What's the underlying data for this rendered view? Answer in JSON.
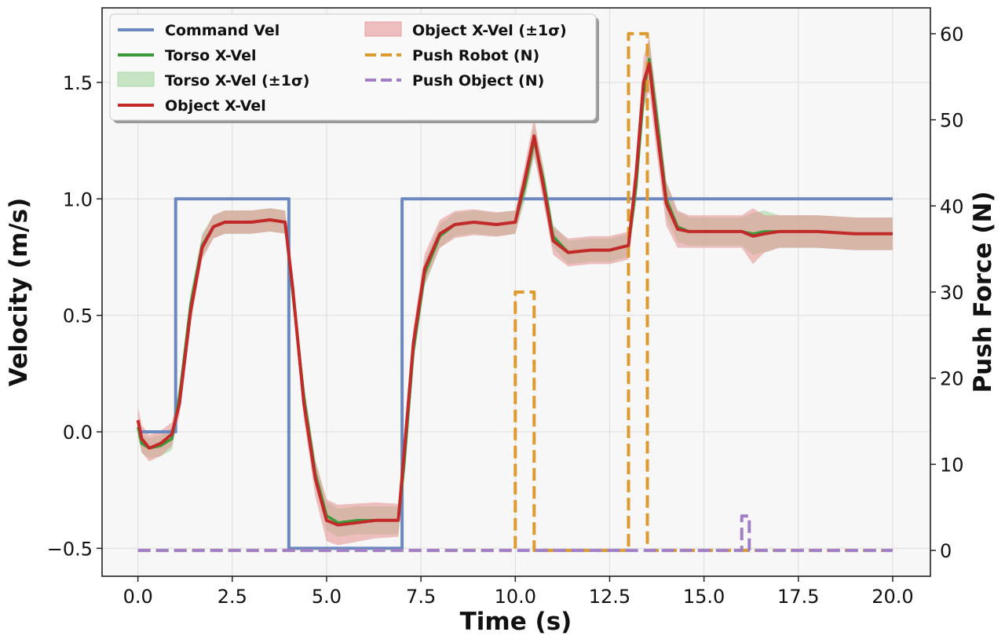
{
  "chart_data": {
    "type": "line",
    "xlabel": "Time (s)",
    "ylabel": "Velocity (m/s)",
    "y2label": "Push Force (N)",
    "xlim": [
      -0.95,
      21.0
    ],
    "ylim": [
      -0.62,
      1.82
    ],
    "y2lim": [
      -3.0,
      63.0
    ],
    "xticks": [
      0.0,
      2.5,
      5.0,
      7.5,
      10.0,
      12.5,
      15.0,
      17.5,
      20.0
    ],
    "xtick_labels": [
      "0.0",
      "2.5",
      "5.0",
      "7.5",
      "10.0",
      "12.5",
      "15.0",
      "17.5",
      "20.0"
    ],
    "yticks": [
      -0.5,
      0.0,
      0.5,
      1.0,
      1.5
    ],
    "ytick_labels": [
      "−0.5",
      "0.0",
      "0.5",
      "1.0",
      "1.5"
    ],
    "y2ticks": [
      0,
      10,
      20,
      30,
      40,
      50,
      60
    ],
    "y2tick_labels": [
      "0",
      "10",
      "20",
      "30",
      "40",
      "50",
      "60"
    ],
    "grid": true,
    "legend_position": "top-left",
    "colors": {
      "command": "#6b88bf",
      "torso": "#3a9a3a",
      "torso_band": "#9fd49a",
      "object": "#c22a2a",
      "object_band": "#e58f8f",
      "push_robot": "#dd9a2e",
      "push_object": "#a07fc8",
      "background": "#f7f7f7",
      "grid": "#dcdcdc"
    },
    "legend": [
      {
        "label": "Command Vel",
        "kind": "line",
        "color": "#6b88bf"
      },
      {
        "label": "Torso X-Vel",
        "kind": "line",
        "color": "#3a9a3a"
      },
      {
        "label": "Torso X-Vel (±1σ)",
        "kind": "band",
        "color": "#9fd49a"
      },
      {
        "label": "Object X-Vel",
        "kind": "line",
        "color": "#c22a2a"
      },
      {
        "label": "Object X-Vel (±1σ)",
        "kind": "band",
        "color": "#e58f8f"
      },
      {
        "label": "Push Robot (N)",
        "kind": "dashed",
        "color": "#dd9a2e"
      },
      {
        "label": "Push Object (N)",
        "kind": "dashed",
        "color": "#a07fc8"
      }
    ],
    "series": [
      {
        "name": "Command Vel",
        "axis": "left",
        "style": "solid",
        "x": [
          0,
          1.0,
          1.0,
          4.0,
          4.0,
          7.0,
          7.0,
          20.0
        ],
        "y": [
          0.0,
          0.0,
          1.0,
          1.0,
          -0.5,
          -0.5,
          1.0,
          1.0
        ]
      },
      {
        "name": "Torso X-Vel",
        "axis": "left",
        "style": "solid",
        "x": [
          0,
          0.1,
          0.3,
          0.6,
          0.9,
          1.1,
          1.4,
          1.7,
          2.0,
          2.3,
          2.6,
          3.0,
          3.5,
          3.9,
          4.1,
          4.4,
          4.7,
          5.0,
          5.3,
          5.8,
          6.3,
          6.9,
          7.05,
          7.3,
          7.6,
          8.0,
          8.4,
          8.9,
          9.5,
          10.0,
          10.25,
          10.5,
          10.75,
          11.0,
          11.4,
          12.0,
          12.5,
          13.0,
          13.2,
          13.4,
          13.55,
          13.75,
          14.0,
          14.3,
          14.6,
          15.0,
          15.5,
          16.0,
          16.3,
          16.6,
          17.0,
          18.0,
          19.0,
          20.0
        ],
        "y": [
          0.02,
          -0.05,
          -0.07,
          -0.06,
          -0.03,
          0.15,
          0.55,
          0.8,
          0.88,
          0.9,
          0.9,
          0.9,
          0.91,
          0.9,
          0.6,
          0.15,
          -0.18,
          -0.36,
          -0.39,
          -0.38,
          -0.38,
          -0.38,
          -0.15,
          0.35,
          0.68,
          0.84,
          0.89,
          0.9,
          0.89,
          0.9,
          1.05,
          1.25,
          1.08,
          0.84,
          0.77,
          0.78,
          0.78,
          0.8,
          1.05,
          1.45,
          1.6,
          1.35,
          1.0,
          0.88,
          0.86,
          0.86,
          0.86,
          0.86,
          0.85,
          0.86,
          0.86,
          0.86,
          0.85,
          0.85
        ]
      },
      {
        "name": "Object X-Vel",
        "axis": "left",
        "style": "solid",
        "x": [
          0,
          0.1,
          0.3,
          0.6,
          0.9,
          1.1,
          1.4,
          1.7,
          2.0,
          2.3,
          2.6,
          3.0,
          3.5,
          3.9,
          4.1,
          4.4,
          4.7,
          5.0,
          5.3,
          5.8,
          6.3,
          6.9,
          7.05,
          7.3,
          7.6,
          8.0,
          8.4,
          8.9,
          9.5,
          10.0,
          10.25,
          10.5,
          10.75,
          11.0,
          11.4,
          12.0,
          12.5,
          13.0,
          13.2,
          13.4,
          13.55,
          13.75,
          14.0,
          14.3,
          14.6,
          15.0,
          15.5,
          16.0,
          16.3,
          16.6,
          17.0,
          18.0,
          19.0,
          20.0
        ],
        "y": [
          0.05,
          -0.03,
          -0.07,
          -0.05,
          -0.01,
          0.12,
          0.52,
          0.79,
          0.88,
          0.9,
          0.9,
          0.9,
          0.91,
          0.9,
          0.62,
          0.12,
          -0.2,
          -0.38,
          -0.4,
          -0.39,
          -0.38,
          -0.38,
          -0.1,
          0.38,
          0.7,
          0.85,
          0.89,
          0.9,
          0.89,
          0.9,
          1.08,
          1.27,
          1.05,
          0.82,
          0.77,
          0.78,
          0.78,
          0.8,
          1.1,
          1.5,
          1.58,
          1.3,
          0.98,
          0.87,
          0.86,
          0.86,
          0.86,
          0.86,
          0.84,
          0.85,
          0.86,
          0.86,
          0.85,
          0.85
        ]
      },
      {
        "name": "Push Robot (N)",
        "axis": "right",
        "style": "dashed",
        "x": [
          0,
          10.0,
          10.0,
          10.5,
          10.5,
          13.0,
          13.0,
          13.5,
          13.5,
          20.0
        ],
        "y": [
          0,
          0,
          30,
          30,
          0,
          0,
          60,
          60,
          0,
          0
        ]
      },
      {
        "name": "Push Object (N)",
        "axis": "right",
        "style": "dashed",
        "x": [
          0,
          16.0,
          16.0,
          16.2,
          16.2,
          20.0
        ],
        "y": [
          0,
          0,
          4,
          4,
          0,
          0
        ]
      }
    ],
    "bands": [
      {
        "name": "Torso X-Vel (±1σ)",
        "of": "Torso X-Vel",
        "x": [
          0,
          1.0,
          2.0,
          4.0,
          5.0,
          7.0,
          8.0,
          10.0,
          10.5,
          11.0,
          13.0,
          13.5,
          14.5,
          16.0,
          16.4,
          17.0,
          20.0
        ],
        "sigma": [
          0.04,
          0.05,
          0.05,
          0.05,
          0.06,
          0.06,
          0.05,
          0.05,
          0.07,
          0.05,
          0.05,
          0.09,
          0.06,
          0.06,
          0.1,
          0.07,
          0.07
        ]
      },
      {
        "name": "Object X-Vel (±1σ)",
        "of": "Object X-Vel",
        "x": [
          0,
          1.0,
          2.0,
          4.0,
          5.0,
          7.0,
          8.0,
          10.0,
          10.5,
          11.0,
          13.0,
          13.5,
          14.5,
          16.0,
          16.3,
          16.6,
          17.0,
          20.0
        ],
        "sigma": [
          0.06,
          0.05,
          0.05,
          0.05,
          0.09,
          0.07,
          0.06,
          0.05,
          0.08,
          0.06,
          0.06,
          0.12,
          0.07,
          0.07,
          0.12,
          0.08,
          0.07,
          0.07
        ]
      }
    ]
  }
}
